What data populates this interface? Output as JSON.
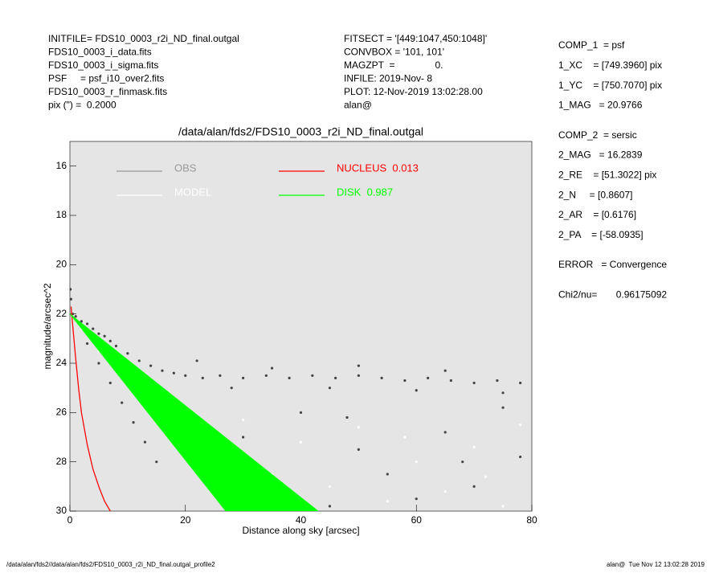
{
  "header": {
    "left": [
      "INITFILE= FDS10_0003_r2i_ND_final.outgal",
      "FDS10_0003_i_data.fits",
      "FDS10_0003_i_sigma.fits",
      "PSF     = psf_i10_over2.fits",
      "FDS10_0003_r_finmask.fits",
      "pix (\") =  0.2000"
    ],
    "middle": [
      "FITSECT = '[449:1047,450:1048]'",
      "CONVBOX = '101, 101'",
      "MAGZPT  =               0.",
      "INFILE: 2019-Nov- 8",
      "PLOT: 12-Nov-2019 13:02:28.00",
      "alan@"
    ],
    "right": [
      [
        "COMP_1  = psf",
        "1_XC    = [749.3960] pix",
        "1_YC    = [750.7070] pix",
        "1_MAG   = 20.9766"
      ],
      [
        "COMP_2  = sersic",
        "2_MAG   = 16.2839",
        "2_RE    = [51.3022] pix",
        "2_N     = [0.8607]",
        "2_AR    = [0.6176]",
        "2_PA    = [-58.0935]"
      ],
      [
        "ERROR   = Convergence"
      ],
      [
        "Chi2/nu=       0.96175092"
      ]
    ]
  },
  "footer": {
    "left": "/data/alan/fds2//data/alan/fds2/FDS10_0003_r2i_ND_final.outgal_profile2",
    "right": "alan@  Tue Nov 12 13:02:28 2019"
  },
  "chart_data": {
    "type": "scatter",
    "title": "/data/alan/fds2/FDS10_0003_r2i_ND_final.outgal",
    "x_label": "Distance along sky [arcsec]",
    "y_label": "magnitude/arcsec^2",
    "xlim": [
      0,
      80
    ],
    "xticks": [
      0,
      20,
      40,
      60,
      80
    ],
    "ylim": [
      15,
      30
    ],
    "y_inverted": true,
    "yticks": [
      16,
      18,
      20,
      22,
      24,
      26,
      28,
      30
    ],
    "background": "#e5e5e5",
    "series": [
      {
        "name": "OBS",
        "style": "points",
        "color": "#444444",
        "label_color": "#999999",
        "x": [
          0.5,
          1,
          2,
          3,
          4,
          5,
          6,
          7,
          8,
          10,
          12,
          14,
          16,
          18,
          20,
          23,
          26,
          30,
          34,
          38,
          42,
          46,
          50,
          54,
          58,
          62,
          66,
          70,
          74,
          78,
          22,
          35,
          50,
          65,
          28,
          45,
          60,
          75,
          3,
          5,
          7,
          9,
          11,
          13,
          15,
          20,
          30,
          40,
          50,
          55,
          65,
          70,
          78,
          35,
          45,
          60,
          25,
          75,
          68,
          48,
          0.1,
          0.2
        ],
        "values": [
          22.0,
          22.1,
          22.3,
          22.4,
          22.6,
          22.8,
          22.9,
          23.1,
          23.3,
          23.6,
          23.9,
          24.1,
          24.3,
          24.4,
          24.5,
          24.6,
          24.5,
          24.6,
          24.5,
          24.6,
          24.5,
          24.6,
          24.5,
          24.6,
          24.7,
          24.6,
          24.7,
          24.8,
          24.7,
          24.8,
          23.9,
          24.2,
          24.1,
          24.3,
          25.0,
          25.0,
          25.1,
          25.2,
          23.2,
          24.0,
          24.8,
          25.6,
          26.4,
          27.2,
          28.0,
          26.5,
          27.0,
          26.0,
          27.5,
          28.5,
          26.8,
          29.0,
          27.8,
          29.3,
          29.8,
          29.5,
          28.2,
          25.8,
          28.0,
          26.2,
          21.0,
          21.4
        ]
      },
      {
        "name": "MODEL",
        "style": "points",
        "color": "#ffffff",
        "label_color": "#ffffff",
        "x": [
          2,
          5,
          8,
          12,
          20,
          30,
          40,
          50,
          60,
          70,
          78,
          45,
          55,
          65,
          75,
          35,
          25,
          15,
          72,
          58
        ],
        "values": [
          22.6,
          23.5,
          24.2,
          25.0,
          25.8,
          26.3,
          27.2,
          26.6,
          28.0,
          27.4,
          26.5,
          29.0,
          29.6,
          29.2,
          29.8,
          28.5,
          27.5,
          26.0,
          28.6,
          27.0
        ]
      },
      {
        "name": "NUCLEUS  0.013",
        "style": "line",
        "color": "#ff0000",
        "label_color": "#ff0000",
        "x": [
          0.2,
          0.5,
          1,
          1.5,
          2,
          3,
          4,
          5,
          6,
          7
        ],
        "values": [
          21.7,
          22.5,
          23.8,
          25.0,
          26.0,
          27.3,
          28.3,
          29.0,
          29.6,
          30.0
        ]
      },
      {
        "name": "DISK  0.987",
        "style": "band",
        "color": "#00ff00",
        "label_color": "#00ff00",
        "x": [
          0,
          27,
          43
        ],
        "values": [
          22,
          30,
          30
        ]
      }
    ]
  }
}
